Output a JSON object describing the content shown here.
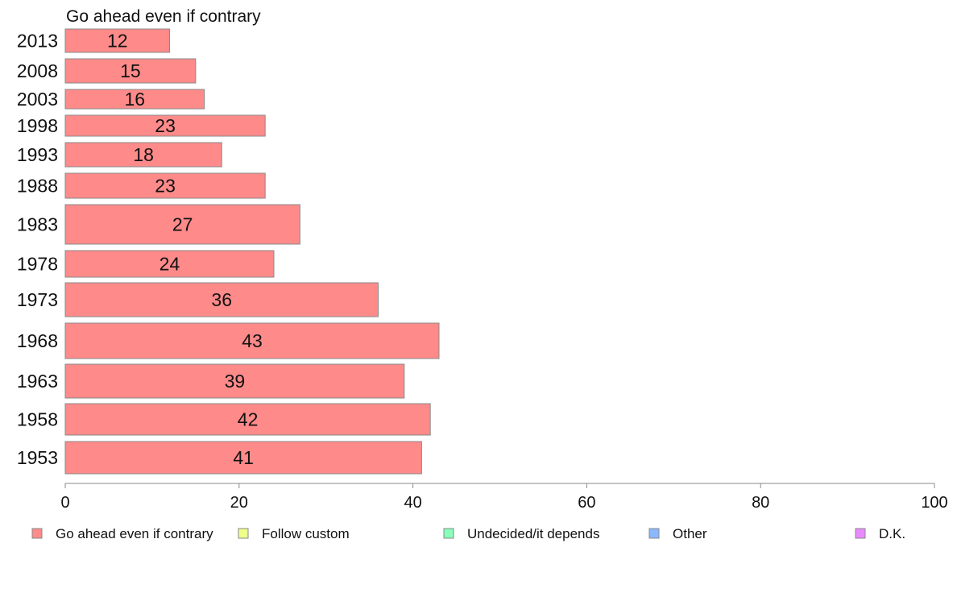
{
  "chart_data": {
    "type": "bar",
    "orientation": "horizontal",
    "title": "Go ahead even if contrary",
    "categories": [
      "2013",
      "2008",
      "2003",
      "1998",
      "1993",
      "1988",
      "1983",
      "1978",
      "1973",
      "1968",
      "1963",
      "1958",
      "1953"
    ],
    "series": [
      {
        "name": "Go ahead even if contrary",
        "color": "#ff8a8a",
        "values": [
          12,
          15,
          16,
          23,
          18,
          23,
          27,
          24,
          36,
          43,
          39,
          42,
          41
        ]
      }
    ],
    "xlim": [
      0,
      100
    ],
    "x_ticks": [
      "0",
      "20",
      "40",
      "60",
      "80",
      "100"
    ],
    "grid": false,
    "legend_position": "bottom",
    "legend": [
      {
        "label": "Go ahead even if contrary",
        "color": "#ff8a8a"
      },
      {
        "label": "Follow custom",
        "color": "#eeff8a"
      },
      {
        "label": "Undecided/it depends",
        "color": "#8affbb"
      },
      {
        "label": "Other",
        "color": "#8ab8ff"
      },
      {
        "label": "D.K.",
        "color": "#ea8aff"
      }
    ]
  }
}
